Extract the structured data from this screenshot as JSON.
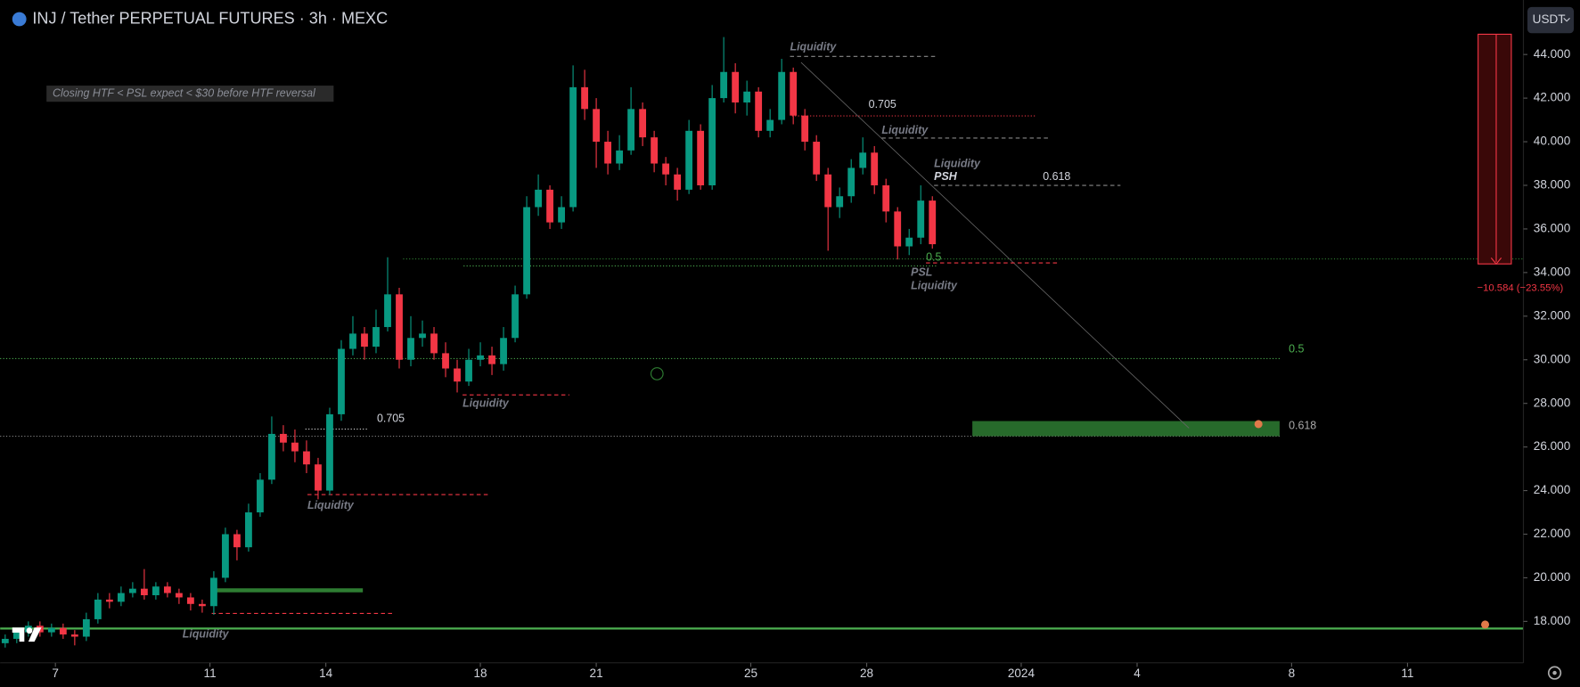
{
  "chart_data": {
    "type": "candlestick",
    "title": "INJ / Tether PERPETUAL FUTURES · 3h · MEXC",
    "note": "Closing HTF < PSL expect < $30 before HTF reversal",
    "currency": "USDT",
    "measure_label": "−10.584 (−23.55%)",
    "annotations": [
      "Liquidity",
      "0.705",
      "Liquidity",
      "Liquidity",
      "PSH",
      "0.618",
      "0.5",
      "PSL",
      "Liquidity",
      "0.5",
      "0.618",
      "0.705",
      "Liquidity",
      "Liquidity",
      "Liquidity"
    ],
    "up_color": "#089981",
    "down_color": "#f23645",
    "grid": false,
    "xlim": [
      5.57,
      45
    ],
    "ylim": [
      16.1,
      46.5
    ],
    "xticks": [
      7,
      11,
      14,
      18,
      21,
      25,
      28,
      {
        "value": 32,
        "label": "2024"
      },
      {
        "value": 35,
        "label": "4"
      },
      {
        "value": 39,
        "label": "8"
      },
      {
        "value": 42,
        "label": "11"
      }
    ],
    "yticks": [
      {
        "value": 44,
        "label": "44.000"
      },
      {
        "value": 42,
        "label": "42.000"
      },
      {
        "value": 40,
        "label": "40.000"
      },
      {
        "value": 38,
        "label": "38.000"
      },
      {
        "value": 36,
        "label": "36.000"
      },
      {
        "value": 34,
        "label": "34.000"
      },
      {
        "value": 32,
        "label": "32.000"
      },
      {
        "value": 30,
        "label": "30.000"
      },
      {
        "value": 28,
        "label": "28.000"
      },
      {
        "value": 26,
        "label": "26.000"
      },
      {
        "value": 24,
        "label": "24.000"
      },
      {
        "value": 22,
        "label": "22.000"
      },
      {
        "value": 20,
        "label": "20.000"
      },
      {
        "value": 18,
        "label": "18.000"
      }
    ],
    "x": [
      5.7,
      6.0,
      6.3,
      6.6,
      6.9,
      7.2,
      7.5,
      7.8,
      8.1,
      8.4,
      8.7,
      9.0,
      9.3,
      9.6,
      9.9,
      10.2,
      10.5,
      10.8,
      11.1,
      11.4,
      11.7,
      12.0,
      12.3,
      12.6,
      12.9,
      13.2,
      13.5,
      13.8,
      14.1,
      14.4,
      14.7,
      15.0,
      15.3,
      15.6,
      15.9,
      16.2,
      16.5,
      16.8,
      17.1,
      17.4,
      17.7,
      18.0,
      18.3,
      18.6,
      18.9,
      19.2,
      19.5,
      19.8,
      20.1,
      20.4,
      20.7,
      21.0,
      21.3,
      21.6,
      21.9,
      22.2,
      22.5,
      22.8,
      23.1,
      23.4,
      23.7,
      24.0,
      24.3,
      24.6,
      24.9,
      25.2,
      25.5,
      25.8,
      26.1,
      26.4,
      26.7,
      27.0,
      27.3,
      27.6,
      27.9,
      28.2,
      28.5,
      28.8,
      29.1,
      29.4,
      29.7
    ],
    "open": [
      17.0,
      17.2,
      17.5,
      17.8,
      17.5,
      17.7,
      17.4,
      17.3,
      18.1,
      19.0,
      18.9,
      19.3,
      19.5,
      19.2,
      19.6,
      19.3,
      19.1,
      18.8,
      18.7,
      20.0,
      22.0,
      21.4,
      23.0,
      24.5,
      26.6,
      26.2,
      25.8,
      25.2,
      24.0,
      27.5,
      30.5,
      31.2,
      30.6,
      31.5,
      33.0,
      30.0,
      31.0,
      31.2,
      30.3,
      29.6,
      29.0,
      30.0,
      30.2,
      29.8,
      31.0,
      33.0,
      37.0,
      37.8,
      36.3,
      37.0,
      42.5,
      41.5,
      40.0,
      39.0,
      39.6,
      41.5,
      40.2,
      39.0,
      38.5,
      37.8,
      40.5,
      38.0,
      42.0,
      43.2,
      41.8,
      42.3,
      40.5,
      41.0,
      43.2,
      41.2,
      40.0,
      38.5,
      37.0,
      37.5,
      38.8,
      39.5,
      38.0,
      36.8,
      35.2,
      35.6,
      37.3
    ],
    "high": [
      17.4,
      17.7,
      18.0,
      18.0,
      17.9,
      17.9,
      17.6,
      18.4,
      19.3,
      19.3,
      19.6,
      19.8,
      20.4,
      19.8,
      19.8,
      19.5,
      19.3,
      19.0,
      20.3,
      22.3,
      22.2,
      23.4,
      24.8,
      27.4,
      27.0,
      26.8,
      26.3,
      25.5,
      27.8,
      30.9,
      32.0,
      31.5,
      32.3,
      34.7,
      33.3,
      32.0,
      31.8,
      31.5,
      30.8,
      30.0,
      30.5,
      30.8,
      30.6,
      31.5,
      33.4,
      37.5,
      38.5,
      38.0,
      37.5,
      43.5,
      43.3,
      42.0,
      40.5,
      40.3,
      42.5,
      41.8,
      40.5,
      39.3,
      38.8,
      41.0,
      40.8,
      42.6,
      44.8,
      43.6,
      42.8,
      42.5,
      41.5,
      43.8,
      43.4,
      41.5,
      40.3,
      38.8,
      37.9,
      39.2,
      40.2,
      39.8,
      38.3,
      37.0,
      36.0,
      38.0,
      37.5
    ],
    "low": [
      16.8,
      17.0,
      17.3,
      17.3,
      17.3,
      17.2,
      16.9,
      17.1,
      17.9,
      18.6,
      18.7,
      19.1,
      19.0,
      19.0,
      19.1,
      18.8,
      18.5,
      18.4,
      18.3,
      19.8,
      20.8,
      21.2,
      22.8,
      24.3,
      25.8,
      25.3,
      24.8,
      23.6,
      23.8,
      27.2,
      30.2,
      30.0,
      30.3,
      31.3,
      29.6,
      29.7,
      30.6,
      30.0,
      29.2,
      28.5,
      28.8,
      29.7,
      29.3,
      29.5,
      30.8,
      32.8,
      36.6,
      36.0,
      36.0,
      36.8,
      41.0,
      38.8,
      38.5,
      38.7,
      39.4,
      39.8,
      38.6,
      38.0,
      37.3,
      37.6,
      37.8,
      37.8,
      41.8,
      41.3,
      41.2,
      40.2,
      40.2,
      40.8,
      40.8,
      39.6,
      38.2,
      35.0,
      36.5,
      37.2,
      38.5,
      37.6,
      36.3,
      34.6,
      34.8,
      35.3,
      35.1
    ],
    "close": [
      17.2,
      17.5,
      17.8,
      17.5,
      17.7,
      17.4,
      17.3,
      18.1,
      19.0,
      18.9,
      19.3,
      19.5,
      19.2,
      19.6,
      19.3,
      19.1,
      18.8,
      18.7,
      20.0,
      22.0,
      21.4,
      23.0,
      24.5,
      26.6,
      26.2,
      25.8,
      25.2,
      24.0,
      27.5,
      30.5,
      31.2,
      30.6,
      31.5,
      33.0,
      30.0,
      31.0,
      31.2,
      30.3,
      29.6,
      29.0,
      30.0,
      30.2,
      29.8,
      31.0,
      33.0,
      37.0,
      37.8,
      36.3,
      37.0,
      42.5,
      41.5,
      40.0,
      39.0,
      39.6,
      41.5,
      40.2,
      39.0,
      38.5,
      37.8,
      40.5,
      38.0,
      42.0,
      43.2,
      41.8,
      42.3,
      40.5,
      41.0,
      43.2,
      41.2,
      40.0,
      38.5,
      37.0,
      37.5,
      38.8,
      39.5,
      38.0,
      36.8,
      35.2,
      35.6,
      37.3,
      35.3
    ]
  }
}
